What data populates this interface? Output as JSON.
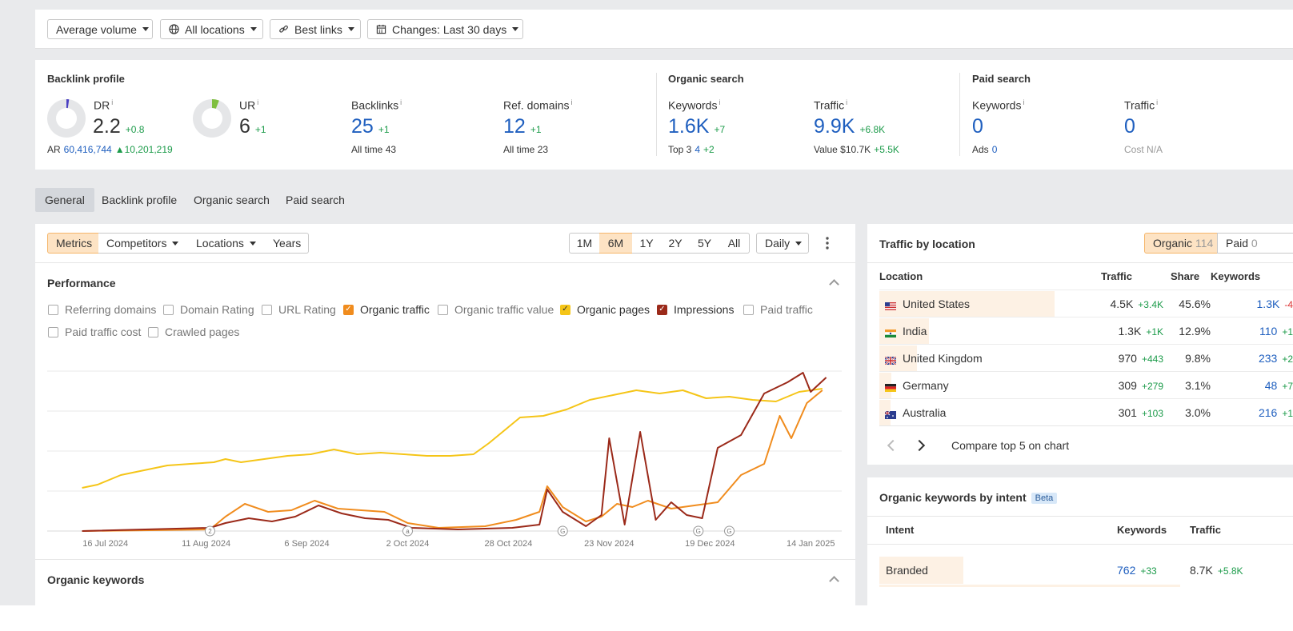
{
  "filters": {
    "volume": "Average volume",
    "locations": "All locations",
    "links": "Best links",
    "changes": "Changes: Last 30 days"
  },
  "backlink_profile": {
    "title": "Backlink profile",
    "dr": {
      "label": "DR",
      "info": "i",
      "value": "2.2",
      "delta": "+0.8"
    },
    "ar": {
      "label": "AR",
      "value": "60,416,744",
      "delta": "10,201,219"
    },
    "ur": {
      "label": "UR",
      "info": "i",
      "value": "6",
      "delta": "+1"
    },
    "backlinks": {
      "label": "Backlinks",
      "info": "i",
      "value": "25",
      "delta": "+1",
      "sub_label": "All time",
      "sub_value": "43"
    },
    "ref_domains": {
      "label": "Ref. domains",
      "info": "i",
      "value": "12",
      "delta": "+1",
      "sub_label": "All time",
      "sub_value": "23"
    }
  },
  "organic_search": {
    "title": "Organic search",
    "keywords": {
      "label": "Keywords",
      "info": "i",
      "value": "1.6K",
      "delta": "+7",
      "sub_label": "Top 3",
      "sub_value": "4",
      "sub_delta": "+2"
    },
    "traffic": {
      "label": "Traffic",
      "info": "i",
      "value": "9.9K",
      "delta": "+6.8K",
      "sub_label": "Value",
      "sub_value": "$10.7K",
      "sub_delta": "+5.5K"
    }
  },
  "paid_search": {
    "title": "Paid search",
    "keywords": {
      "label": "Keywords",
      "info": "i",
      "value": "0",
      "sub_label": "Ads",
      "sub_value": "0"
    },
    "traffic": {
      "label": "Traffic",
      "info": "i",
      "value": "0",
      "sub_label": "Cost",
      "sub_value": "N/A"
    }
  },
  "tabs": [
    {
      "label": "General",
      "active": true
    },
    {
      "label": "Backlink profile"
    },
    {
      "label": "Organic search"
    },
    {
      "label": "Paid search"
    }
  ],
  "chart_toolbar": {
    "metrics": "Metrics",
    "competitors": "Competitors",
    "locations": "Locations",
    "years": "Years",
    "ranges": [
      "1M",
      "6M",
      "1Y",
      "2Y",
      "5Y",
      "All"
    ],
    "active_range": "6M",
    "interval": "Daily"
  },
  "performance": {
    "title": "Performance",
    "checkboxes": [
      {
        "label": "Referring domains",
        "checked": false
      },
      {
        "label": "Domain Rating",
        "checked": false
      },
      {
        "label": "URL Rating",
        "checked": false
      },
      {
        "label": "Organic traffic",
        "checked": true,
        "color": "#f08c1e"
      },
      {
        "label": "Organic traffic value",
        "checked": false
      },
      {
        "label": "Organic pages",
        "checked": true,
        "color": "#f5c518"
      },
      {
        "label": "Impressions",
        "checked": true,
        "color": "#9b2a1a"
      },
      {
        "label": "Paid traffic",
        "checked": false
      },
      {
        "label": "Paid traffic cost",
        "checked": false
      },
      {
        "label": "Crawled pages",
        "checked": false
      }
    ]
  },
  "chart_data": {
    "type": "line",
    "x_tick_labels": [
      "16 Jul 2024",
      "11 Aug 2024",
      "6 Sep 2024",
      "2 Oct 2024",
      "28 Oct 2024",
      "23 Nov 2024",
      "19 Dec 2024",
      "14 Jan 2025"
    ],
    "grid": true,
    "y_axis_labels": false,
    "annotations": [
      {
        "label": "2",
        "date": "2024-08-12"
      },
      {
        "label": "a",
        "date": "2024-10-02"
      },
      {
        "label": "G",
        "date": "2024-11-11"
      },
      {
        "label": "G",
        "date": "2024-12-16"
      },
      {
        "label": "G",
        "date": "2024-12-24"
      }
    ],
    "series": [
      {
        "name": "Organic pages",
        "color": "#f5c518",
        "points": [
          [
            "2024-07-10",
            0.27
          ],
          [
            "2024-07-14",
            0.29
          ],
          [
            "2024-07-20",
            0.35
          ],
          [
            "2024-07-26",
            0.38
          ],
          [
            "2024-08-01",
            0.41
          ],
          [
            "2024-08-07",
            0.42
          ],
          [
            "2024-08-13",
            0.43
          ],
          [
            "2024-08-16",
            0.45
          ],
          [
            "2024-08-20",
            0.43
          ],
          [
            "2024-08-26",
            0.45
          ],
          [
            "2024-09-01",
            0.47
          ],
          [
            "2024-09-07",
            0.48
          ],
          [
            "2024-09-13",
            0.51
          ],
          [
            "2024-09-19",
            0.48
          ],
          [
            "2024-09-25",
            0.49
          ],
          [
            "2024-10-01",
            0.48
          ],
          [
            "2024-10-07",
            0.47
          ],
          [
            "2024-10-13",
            0.47
          ],
          [
            "2024-10-19",
            0.48
          ],
          [
            "2024-10-23",
            0.55
          ],
          [
            "2024-10-27",
            0.63
          ],
          [
            "2024-10-31",
            0.71
          ],
          [
            "2024-11-06",
            0.72
          ],
          [
            "2024-11-12",
            0.76
          ],
          [
            "2024-11-18",
            0.82
          ],
          [
            "2024-11-24",
            0.85
          ],
          [
            "2024-11-30",
            0.88
          ],
          [
            "2024-12-06",
            0.86
          ],
          [
            "2024-12-12",
            0.88
          ],
          [
            "2024-12-18",
            0.83
          ],
          [
            "2024-12-24",
            0.84
          ],
          [
            "2024-12-30",
            0.82
          ],
          [
            "2025-01-05",
            0.81
          ],
          [
            "2025-01-11",
            0.87
          ],
          [
            "2025-01-17",
            0.89
          ]
        ]
      },
      {
        "name": "Organic traffic",
        "color": "#f08c1e",
        "points": [
          [
            "2024-07-10",
            0.0
          ],
          [
            "2024-08-12",
            0.01
          ],
          [
            "2024-08-16",
            0.09
          ],
          [
            "2024-08-21",
            0.17
          ],
          [
            "2024-08-27",
            0.12
          ],
          [
            "2024-09-02",
            0.13
          ],
          [
            "2024-09-08",
            0.19
          ],
          [
            "2024-09-14",
            0.14
          ],
          [
            "2024-09-20",
            0.13
          ],
          [
            "2024-09-26",
            0.12
          ],
          [
            "2024-10-02",
            0.05
          ],
          [
            "2024-10-10",
            0.02
          ],
          [
            "2024-10-22",
            0.03
          ],
          [
            "2024-10-30",
            0.07
          ],
          [
            "2024-11-05",
            0.12
          ],
          [
            "2024-11-07",
            0.28
          ],
          [
            "2024-11-11",
            0.15
          ],
          [
            "2024-11-17",
            0.06
          ],
          [
            "2024-11-21",
            0.09
          ],
          [
            "2024-11-25",
            0.17
          ],
          [
            "2024-11-29",
            0.15
          ],
          [
            "2024-12-03",
            0.19
          ],
          [
            "2024-12-09",
            0.14
          ],
          [
            "2024-12-15",
            0.16
          ],
          [
            "2024-12-21",
            0.18
          ],
          [
            "2024-12-27",
            0.35
          ],
          [
            "2025-01-02",
            0.42
          ],
          [
            "2025-01-06",
            0.72
          ],
          [
            "2025-01-09",
            0.58
          ],
          [
            "2025-01-13",
            0.8
          ],
          [
            "2025-01-17",
            0.88
          ]
        ]
      },
      {
        "name": "Impressions",
        "color": "#9b2a1a",
        "points": [
          [
            "2024-07-10",
            0.0
          ],
          [
            "2024-08-12",
            0.02
          ],
          [
            "2024-08-16",
            0.05
          ],
          [
            "2024-08-22",
            0.08
          ],
          [
            "2024-08-28",
            0.06
          ],
          [
            "2024-09-03",
            0.09
          ],
          [
            "2024-09-09",
            0.16
          ],
          [
            "2024-09-15",
            0.11
          ],
          [
            "2024-09-21",
            0.08
          ],
          [
            "2024-09-27",
            0.07
          ],
          [
            "2024-10-03",
            0.02
          ],
          [
            "2024-10-15",
            0.01
          ],
          [
            "2024-10-29",
            0.02
          ],
          [
            "2024-11-05",
            0.04
          ],
          [
            "2024-11-07",
            0.26
          ],
          [
            "2024-11-11",
            0.12
          ],
          [
            "2024-11-17",
            0.03
          ],
          [
            "2024-11-21",
            0.1
          ],
          [
            "2024-11-23",
            0.58
          ],
          [
            "2024-11-27",
            0.04
          ],
          [
            "2024-12-01",
            0.62
          ],
          [
            "2024-12-05",
            0.07
          ],
          [
            "2024-12-09",
            0.18
          ],
          [
            "2024-12-13",
            0.1
          ],
          [
            "2024-12-17",
            0.08
          ],
          [
            "2024-12-21",
            0.52
          ],
          [
            "2024-12-27",
            0.6
          ],
          [
            "2025-01-02",
            0.86
          ],
          [
            "2025-01-08",
            0.93
          ],
          [
            "2025-01-12",
            0.99
          ],
          [
            "2025-01-14",
            0.87
          ],
          [
            "2025-01-18",
            0.96
          ]
        ]
      }
    ]
  },
  "organic_keywords_section": {
    "title": "Organic keywords"
  },
  "traffic_by_location": {
    "title": "Traffic by location",
    "toggle": [
      {
        "label": "Organic",
        "count": "114",
        "active": true
      },
      {
        "label": "Paid",
        "count": "0"
      }
    ],
    "columns": [
      "Location",
      "Traffic",
      "Share",
      "Keywords"
    ],
    "rows": [
      {
        "country": "United States",
        "flag": "us",
        "traffic": "4.5K",
        "traffic_delta": "+3.4K",
        "share": "45.6%",
        "share_pct": 45.6,
        "keywords": "1.3K",
        "keywords_delta": "-4"
      },
      {
        "country": "India",
        "flag": "in",
        "traffic": "1.3K",
        "traffic_delta": "+1K",
        "share": "12.9%",
        "share_pct": 12.9,
        "keywords": "110",
        "keywords_delta": "+1"
      },
      {
        "country": "United Kingdom",
        "flag": "gb",
        "traffic": "970",
        "traffic_delta": "+443",
        "share": "9.8%",
        "share_pct": 9.8,
        "keywords": "233",
        "keywords_delta": "+2"
      },
      {
        "country": "Germany",
        "flag": "de",
        "traffic": "309",
        "traffic_delta": "+279",
        "share": "3.1%",
        "share_pct": 3.1,
        "keywords": "48",
        "keywords_delta": "+7"
      },
      {
        "country": "Australia",
        "flag": "au",
        "traffic": "301",
        "traffic_delta": "+103",
        "share": "3.0%",
        "share_pct": 3.0,
        "keywords": "216",
        "keywords_delta": "+1"
      }
    ],
    "compare_label": "Compare top 5 on chart"
  },
  "keywords_by_intent": {
    "title": "Organic keywords by intent",
    "badge": "Beta",
    "columns": [
      "Intent",
      "Keywords",
      "Traffic"
    ],
    "rows": [
      {
        "intent": "Branded",
        "keywords": "762",
        "keywords_delta": "+33",
        "traffic": "8.7K",
        "traffic_delta": "+5.8K"
      }
    ]
  }
}
